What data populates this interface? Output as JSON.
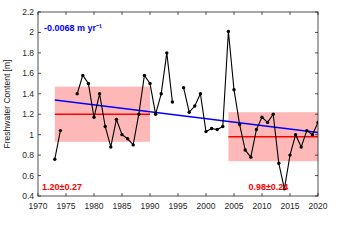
{
  "chart_data": {
    "type": "line",
    "y_label": "Freshwater Content [m]",
    "x": [
      1973,
      1974,
      1975,
      1976,
      1977,
      1978,
      1979,
      1980,
      1981,
      1982,
      1983,
      1984,
      1985,
      1986,
      1987,
      1988,
      1989,
      1990,
      1991,
      1992,
      1993,
      1994,
      1995,
      1996,
      1997,
      1998,
      1999,
      2000,
      2001,
      2002,
      2003,
      2004,
      2005,
      2006,
      2007,
      2008,
      2009,
      2010,
      2011,
      2012,
      2013,
      2014,
      2015,
      2016,
      2017,
      2018,
      2019,
      2020
    ],
    "series": [
      {
        "color": "#000000",
        "marker": "circle",
        "line_style": "solid",
        "values": [
          0.76,
          1.04,
          null,
          null,
          1.4,
          1.58,
          1.5,
          1.17,
          1.4,
          1.08,
          0.88,
          1.15,
          1.0,
          0.96,
          0.9,
          1.2,
          1.58,
          1.5,
          1.2,
          1.4,
          1.8,
          1.32,
          null,
          1.46,
          1.22,
          1.28,
          1.4,
          1.03,
          1.06,
          1.05,
          1.08,
          2.01,
          1.44,
          1.1,
          0.85,
          0.78,
          1.05,
          1.17,
          1.12,
          1.2,
          0.72,
          0.47,
          0.8,
          1.0,
          0.88,
          1.04,
          1.0,
          1.12
        ]
      }
    ],
    "trend": {
      "x": [
        1973,
        2020
      ],
      "values": [
        1.34,
        1.02
      ],
      "color": "#0000ff",
      "label": "-0.0068 m yr⁻¹"
    },
    "means": [
      {
        "x": [
          1973,
          1990
        ],
        "value": 1.2,
        "std": 0.27,
        "label": "1.20±0.27",
        "color": "#ff0000"
      },
      {
        "x": [
          2004,
          2020
        ],
        "value": 0.98,
        "std": 0.24,
        "label": "0.98±0.24",
        "color": "#ff0000"
      }
    ],
    "xlim": [
      1970,
      2020
    ],
    "ylim": [
      0.4,
      2.2
    ],
    "xticks": [
      1970,
      1975,
      1980,
      1985,
      1990,
      1995,
      2000,
      2005,
      2010,
      2015,
      2020
    ],
    "yticks": [
      0.4,
      0.6,
      0.8,
      1,
      1.2,
      1.4,
      1.6,
      1.8,
      2,
      2.2
    ],
    "grid": false
  }
}
